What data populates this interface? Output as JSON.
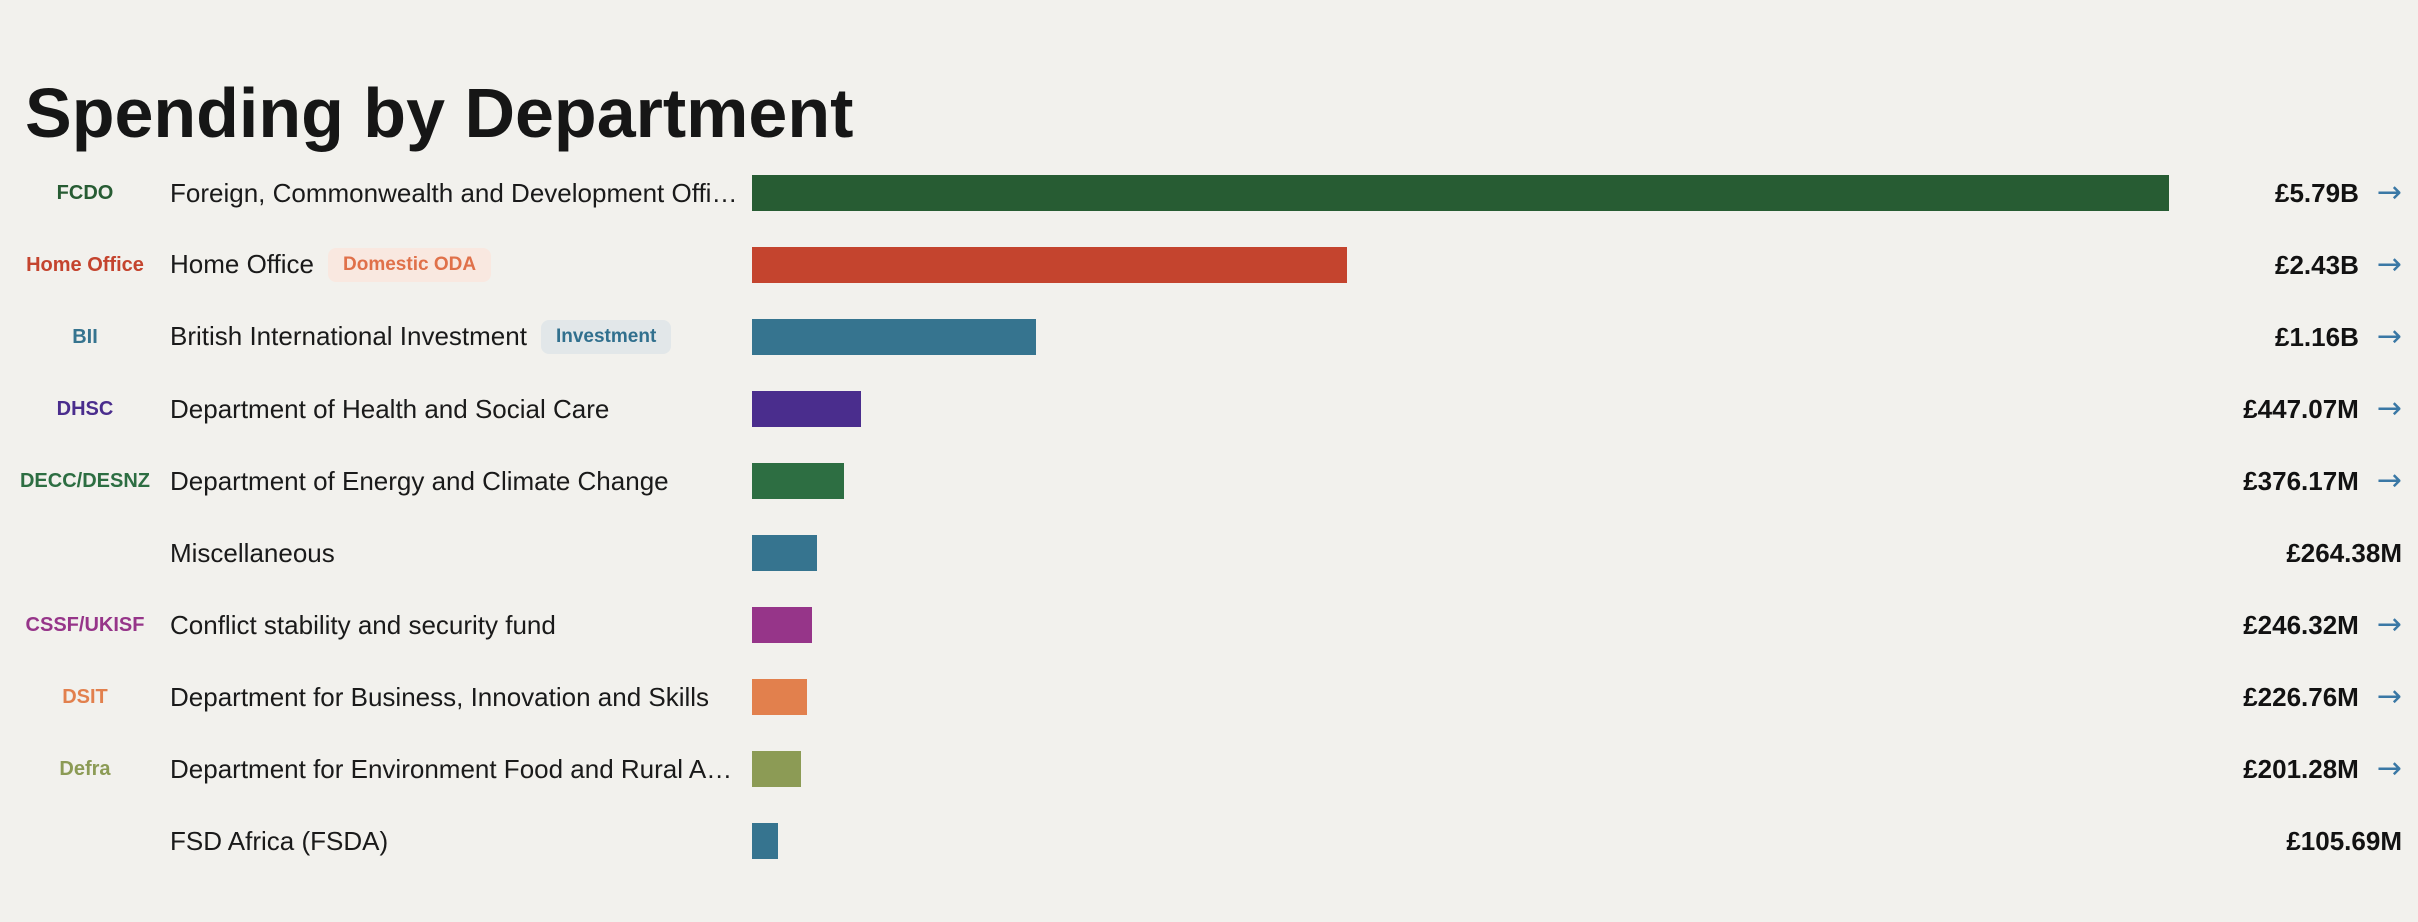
{
  "title": "Spending by Department",
  "page": {
    "background_color": "#f2f1ed",
    "arrow_icon": "→",
    "arrow_color": "#3a78a5"
  },
  "chart_data": {
    "type": "bar",
    "orientation": "horizontal",
    "title": "Spending by Department",
    "currency": "GBP",
    "value_axis_label": "",
    "max_value_millions": 5790,
    "rows": [
      {
        "code": "FCDO",
        "label": "Foreign, Commonwealth and Development Offi…",
        "badge": null,
        "value_label": "£5.79B",
        "value_millions": 5790,
        "color": "#275c33",
        "has_arrow": true
      },
      {
        "code": "Home Office",
        "label": "Home Office",
        "badge": {
          "label": "Domestic ODA",
          "fg": "#e0714a",
          "bg": "#f9e8e0"
        },
        "value_label": "£2.43B",
        "value_millions": 2430,
        "color": "#c4442e",
        "has_arrow": true
      },
      {
        "code": "BII",
        "label": "British International Investment",
        "badge": {
          "label": "Investment",
          "fg": "#31708e",
          "bg": "#e2e7e9"
        },
        "value_label": "£1.16B",
        "value_millions": 1160,
        "color": "#36748f",
        "has_arrow": true
      },
      {
        "code": "DHSC",
        "label": "Department of Health and Social Care",
        "badge": null,
        "value_label": "£447.07M",
        "value_millions": 447.07,
        "color": "#4a2d8d",
        "has_arrow": true
      },
      {
        "code": "DECC/DESNZ",
        "label": "Department of Energy and Climate Change",
        "badge": null,
        "value_label": "£376.17M",
        "value_millions": 376.17,
        "color": "#2d6e42",
        "has_arrow": true
      },
      {
        "code": "",
        "label": "Miscellaneous",
        "badge": null,
        "value_label": "£264.38M",
        "value_millions": 264.38,
        "color": "#36748f",
        "has_arrow": false
      },
      {
        "code": "CSSF/UKISF",
        "label": "Conflict stability and security fund",
        "badge": null,
        "value_label": "£246.32M",
        "value_millions": 246.32,
        "color": "#963589",
        "has_arrow": true
      },
      {
        "code": "DSIT",
        "label": "Department for Business, Innovation and Skills",
        "badge": null,
        "value_label": "£226.76M",
        "value_millions": 226.76,
        "color": "#e2804d",
        "has_arrow": true
      },
      {
        "code": "Defra",
        "label": "Department for Environment Food and Rural A…",
        "badge": null,
        "value_label": "£201.28M",
        "value_millions": 201.28,
        "color": "#8c9b55",
        "has_arrow": true
      },
      {
        "code": "",
        "label": "FSD Africa (FSDA)",
        "badge": null,
        "value_label": "£105.69M",
        "value_millions": 105.69,
        "color": "#36748f",
        "has_arrow": false
      }
    ]
  }
}
